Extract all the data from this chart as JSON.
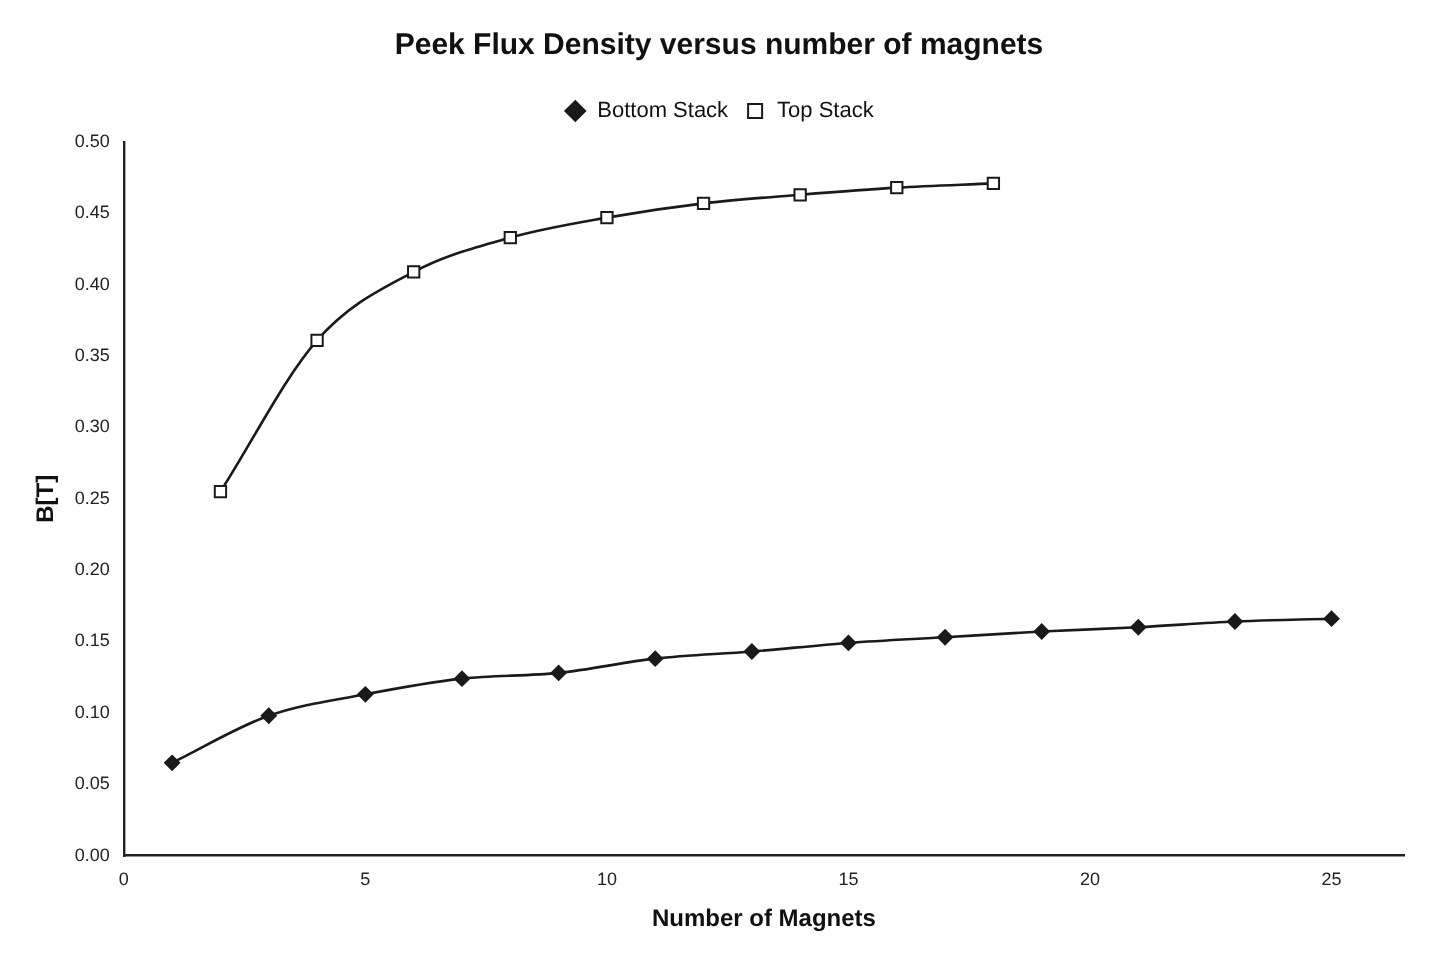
{
  "chart_data": {
    "type": "line",
    "title": "Peek Flux Density versus number of magnets",
    "xlabel": "Number of Magnets",
    "ylabel": "B[T]",
    "xlim": [
      0,
      26.5
    ],
    "xticks": [
      0,
      5,
      10,
      15,
      20,
      25
    ],
    "ylim": [
      0,
      0.5
    ],
    "yticks": [
      {
        "value": 0,
        "label": "0.00"
      },
      {
        "value": 0.05,
        "label": "0.05"
      },
      {
        "value": 0.1,
        "label": "0.10"
      },
      {
        "value": 0.15,
        "label": "0.15"
      },
      {
        "value": 0.2,
        "label": "0.20"
      },
      {
        "value": 0.25,
        "label": "0.25"
      },
      {
        "value": 0.3,
        "label": "0.30"
      },
      {
        "value": 0.35,
        "label": "0.35"
      },
      {
        "value": 0.4,
        "label": "0.40"
      },
      {
        "value": 0.45,
        "label": "0.45"
      },
      {
        "value": 0.5,
        "label": "0.50"
      }
    ],
    "grid": false,
    "legend": "top",
    "line_style": "solid",
    "series": [
      {
        "name": "Bottom Stack",
        "color": "#1a1a1a",
        "marker": "diamond",
        "x": [
          1,
          3,
          5,
          7,
          9,
          11,
          13,
          15,
          17,
          19,
          21,
          23,
          25
        ],
        "values": [
          0.065,
          0.098,
          0.113,
          0.124,
          0.128,
          0.138,
          0.143,
          0.149,
          0.153,
          0.157,
          0.16,
          0.164,
          0.166
        ]
      },
      {
        "name": "Top Stack",
        "color": "#1a1a1a",
        "marker": "square",
        "x": [
          2,
          4,
          6,
          8,
          10,
          12,
          14,
          16,
          18
        ],
        "values": [
          0.255,
          0.361,
          0.409,
          0.433,
          0.447,
          0.457,
          0.463,
          0.468,
          0.471
        ]
      }
    ]
  }
}
